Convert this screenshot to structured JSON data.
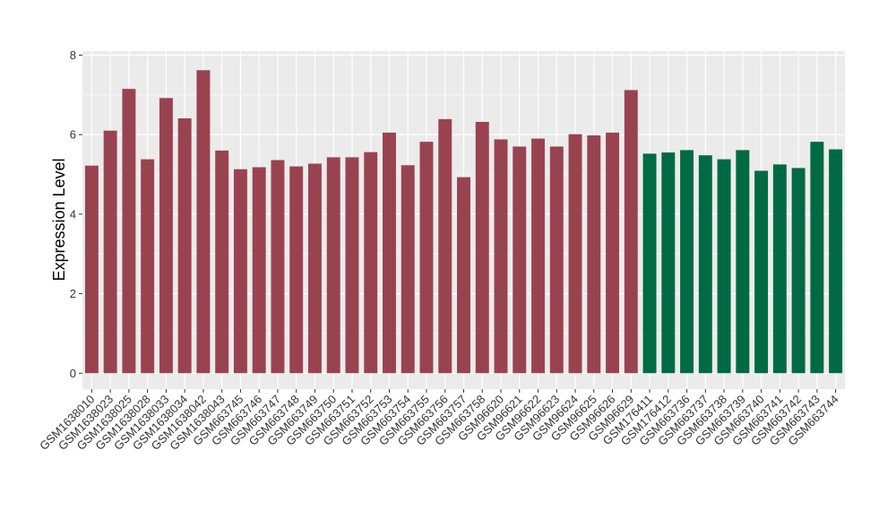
{
  "chart_data": {
    "type": "bar",
    "title": "",
    "xlabel": "",
    "ylabel": "Expression Level",
    "ylim": [
      -0.4,
      8.1
    ],
    "yticks": [
      0,
      2,
      4,
      6,
      8
    ],
    "grid": true,
    "legend": "none",
    "colors": {
      "group1": "#9a4350",
      "group2": "#006a45",
      "panel": "#ebebeb",
      "grid": "#ffffff"
    },
    "categories": [
      "GSM1638010",
      "GSM1638023",
      "GSM1638025",
      "GSM1638028",
      "GSM1638033",
      "GSM1638034",
      "GSM1638042",
      "GSM1638043",
      "GSM663745",
      "GSM663746",
      "GSM663747",
      "GSM663748",
      "GSM663749",
      "GSM663750",
      "GSM663751",
      "GSM663752",
      "GSM663753",
      "GSM663754",
      "GSM663755",
      "GSM663756",
      "GSM663757",
      "GSM663758",
      "GSM96620",
      "GSM96621",
      "GSM96622",
      "GSM96623",
      "GSM96624",
      "GSM96625",
      "GSM96626",
      "GSM96629",
      "GSM176411",
      "GSM176412",
      "GSM663736",
      "GSM663737",
      "GSM663738",
      "GSM663739",
      "GSM663740",
      "GSM663741",
      "GSM663742",
      "GSM663743",
      "GSM663744"
    ],
    "values": [
      5.22,
      6.1,
      7.15,
      5.38,
      6.92,
      6.41,
      7.62,
      5.6,
      5.13,
      5.18,
      5.36,
      5.2,
      5.27,
      5.43,
      5.43,
      5.56,
      6.05,
      5.23,
      5.82,
      6.39,
      4.93,
      6.32,
      5.88,
      5.7,
      5.9,
      5.7,
      6.01,
      5.98,
      6.05,
      7.12,
      5.52,
      5.55,
      5.61,
      5.48,
      5.38,
      5.61,
      5.09,
      5.25,
      5.16,
      5.82,
      5.63
    ],
    "groups": [
      "group1",
      "group1",
      "group1",
      "group1",
      "group1",
      "group1",
      "group1",
      "group1",
      "group1",
      "group1",
      "group1",
      "group1",
      "group1",
      "group1",
      "group1",
      "group1",
      "group1",
      "group1",
      "group1",
      "group1",
      "group1",
      "group1",
      "group1",
      "group1",
      "group1",
      "group1",
      "group1",
      "group1",
      "group1",
      "group1",
      "group2",
      "group2",
      "group2",
      "group2",
      "group2",
      "group2",
      "group2",
      "group2",
      "group2",
      "group2",
      "group2"
    ]
  }
}
